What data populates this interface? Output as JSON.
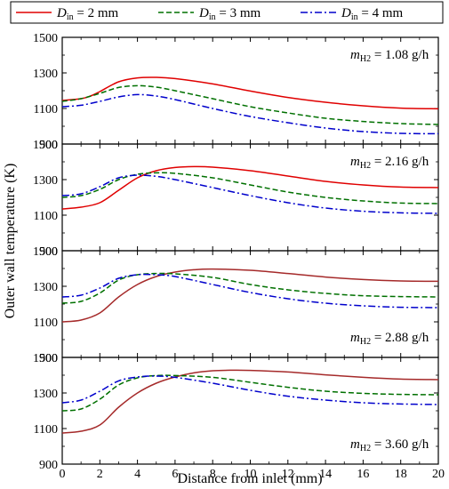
{
  "chart_data": {
    "type": "line",
    "xlabel": "Distance from inlet (mm)",
    "ylabel": "Outer wall temperature (K)",
    "xlim": [
      0,
      20
    ],
    "ylim": [
      900,
      1500
    ],
    "x_ticks": [
      0,
      2,
      4,
      6,
      8,
      10,
      12,
      14,
      16,
      18,
      20
    ],
    "y_ticks": [
      900,
      1100,
      1300,
      1500
    ],
    "y_ticks_top": [
      1500
    ],
    "legend": {
      "placement": "top",
      "entries": [
        {
          "prefix": "D",
          "sub": "in",
          "suffix": " = 2 mm",
          "color": "#e00000",
          "dash": "solid"
        },
        {
          "prefix": "D",
          "sub": "in",
          "suffix": " = 3 mm",
          "color": "#007000",
          "dash": "dashed"
        },
        {
          "prefix": "D",
          "sub": "in",
          "suffix": " = 4 mm",
          "color": "#0000cc",
          "dash": "dashdot"
        }
      ]
    },
    "panels": [
      {
        "annotation": {
          "prefix": "m",
          "sub": "H2",
          "suffix": " = 1.08 g/h"
        },
        "annotation_pos": "top-right",
        "series": [
          {
            "name": "D_in = 2 mm",
            "color": "#e00000",
            "dash": "solid",
            "x": [
              0,
              1,
              1.5,
              2,
              3,
              4,
              5,
              6,
              8,
              10,
              12,
              14,
              16,
              18,
              20
            ],
            "y": [
              1145,
              1155,
              1170,
              1195,
              1250,
              1272,
              1275,
              1268,
              1238,
              1198,
              1162,
              1135,
              1115,
              1102,
              1098
            ]
          },
          {
            "name": "D_in = 3 mm",
            "color": "#007000",
            "dash": "dashed",
            "x": [
              0,
              1,
              2,
              3,
              4,
              5,
              6,
              8,
              10,
              12,
              14,
              16,
              18,
              20
            ],
            "y": [
              1140,
              1155,
              1185,
              1218,
              1228,
              1220,
              1200,
              1155,
              1110,
              1075,
              1045,
              1027,
              1015,
              1010
            ]
          },
          {
            "name": "D_in = 4 mm",
            "color": "#0000cc",
            "dash": "dashdot",
            "x": [
              0,
              1,
              2,
              3,
              4,
              5,
              6,
              8,
              10,
              12,
              14,
              16,
              18,
              20
            ],
            "y": [
              1110,
              1118,
              1140,
              1165,
              1178,
              1170,
              1150,
              1100,
              1055,
              1020,
              990,
              970,
              960,
              958
            ]
          }
        ]
      },
      {
        "annotation": {
          "prefix": "m",
          "sub": "H2",
          "suffix": " = 2.16 g/h"
        },
        "annotation_pos": "top-right",
        "series": [
          {
            "name": "D_in = 2 mm",
            "color": "#e00000",
            "dash": "solid",
            "x": [
              0,
              1,
              2,
              3,
              4,
              5,
              6,
              7,
              8,
              10,
              12,
              14,
              16,
              18,
              20
            ],
            "y": [
              1135,
              1145,
              1170,
              1240,
              1310,
              1350,
              1368,
              1373,
              1370,
              1350,
              1320,
              1290,
              1270,
              1258,
              1255
            ]
          },
          {
            "name": "D_in = 3 mm",
            "color": "#007000",
            "dash": "dashed",
            "x": [
              0,
              1,
              2,
              3,
              4,
              5,
              6,
              8,
              10,
              12,
              14,
              16,
              18,
              20
            ],
            "y": [
              1200,
              1210,
              1245,
              1300,
              1330,
              1338,
              1335,
              1310,
              1270,
              1230,
              1200,
              1180,
              1168,
              1165
            ]
          },
          {
            "name": "D_in = 4 mm",
            "color": "#0000cc",
            "dash": "dashdot",
            "x": [
              0,
              1,
              2,
              3,
              4,
              5,
              6,
              8,
              10,
              12,
              14,
              16,
              18,
              20
            ],
            "y": [
              1210,
              1220,
              1260,
              1310,
              1325,
              1318,
              1300,
              1255,
              1210,
              1170,
              1140,
              1122,
              1113,
              1110
            ]
          }
        ]
      },
      {
        "annotation": {
          "prefix": "m",
          "sub": "H2",
          "suffix": " = 2.88 g/h"
        },
        "annotation_pos": "bottom-right",
        "series": [
          {
            "name": "D_in = 2 mm",
            "color": "#a52a2a",
            "dash": "solid",
            "x": [
              0,
              1,
              2,
              3,
              4,
              5,
              6,
              7,
              8,
              10,
              12,
              14,
              16,
              18,
              20
            ],
            "y": [
              1100,
              1110,
              1150,
              1240,
              1310,
              1355,
              1380,
              1393,
              1397,
              1390,
              1372,
              1352,
              1338,
              1330,
              1328
            ]
          },
          {
            "name": "D_in = 3 mm",
            "color": "#007000",
            "dash": "dashed",
            "x": [
              0,
              1,
              2,
              3,
              4,
              5,
              6,
              8,
              10,
              12,
              14,
              16,
              18,
              20
            ],
            "y": [
              1205,
              1215,
              1262,
              1335,
              1365,
              1372,
              1370,
              1350,
              1310,
              1280,
              1260,
              1247,
              1242,
              1240
            ]
          },
          {
            "name": "D_in = 4 mm",
            "color": "#0000cc",
            "dash": "dashdot",
            "x": [
              0,
              1,
              2,
              3,
              4,
              5,
              6,
              8,
              10,
              12,
              14,
              16,
              18,
              20
            ],
            "y": [
              1240,
              1250,
              1290,
              1345,
              1365,
              1365,
              1355,
              1310,
              1265,
              1230,
              1205,
              1190,
              1182,
              1180
            ]
          }
        ]
      },
      {
        "annotation": {
          "prefix": "m",
          "sub": "H2",
          "suffix": " = 3.60 g/h"
        },
        "annotation_pos": "bottom-right",
        "series": [
          {
            "name": "D_in = 2 mm",
            "color": "#a52a2a",
            "dash": "solid",
            "x": [
              0,
              1,
              2,
              3,
              4,
              5,
              6,
              7,
              8,
              9,
              10,
              12,
              14,
              16,
              18,
              20
            ],
            "y": [
              1075,
              1085,
              1120,
              1220,
              1300,
              1355,
              1390,
              1413,
              1425,
              1428,
              1427,
              1418,
              1402,
              1388,
              1378,
              1375
            ]
          },
          {
            "name": "D_in = 3 mm",
            "color": "#007000",
            "dash": "dashed",
            "x": [
              0,
              1,
              2,
              3,
              4,
              5,
              6,
              8,
              10,
              12,
              14,
              16,
              18,
              20
            ],
            "y": [
              1200,
              1210,
              1265,
              1345,
              1385,
              1398,
              1398,
              1388,
              1360,
              1332,
              1310,
              1298,
              1292,
              1290
            ]
          },
          {
            "name": "D_in = 4 mm",
            "color": "#0000cc",
            "dash": "dashdot",
            "x": [
              0,
              1,
              2,
              3,
              4,
              5,
              6,
              8,
              10,
              12,
              14,
              16,
              18,
              20
            ],
            "y": [
              1245,
              1260,
              1310,
              1368,
              1390,
              1395,
              1388,
              1355,
              1315,
              1282,
              1260,
              1245,
              1238,
              1235
            ]
          }
        ]
      }
    ]
  }
}
